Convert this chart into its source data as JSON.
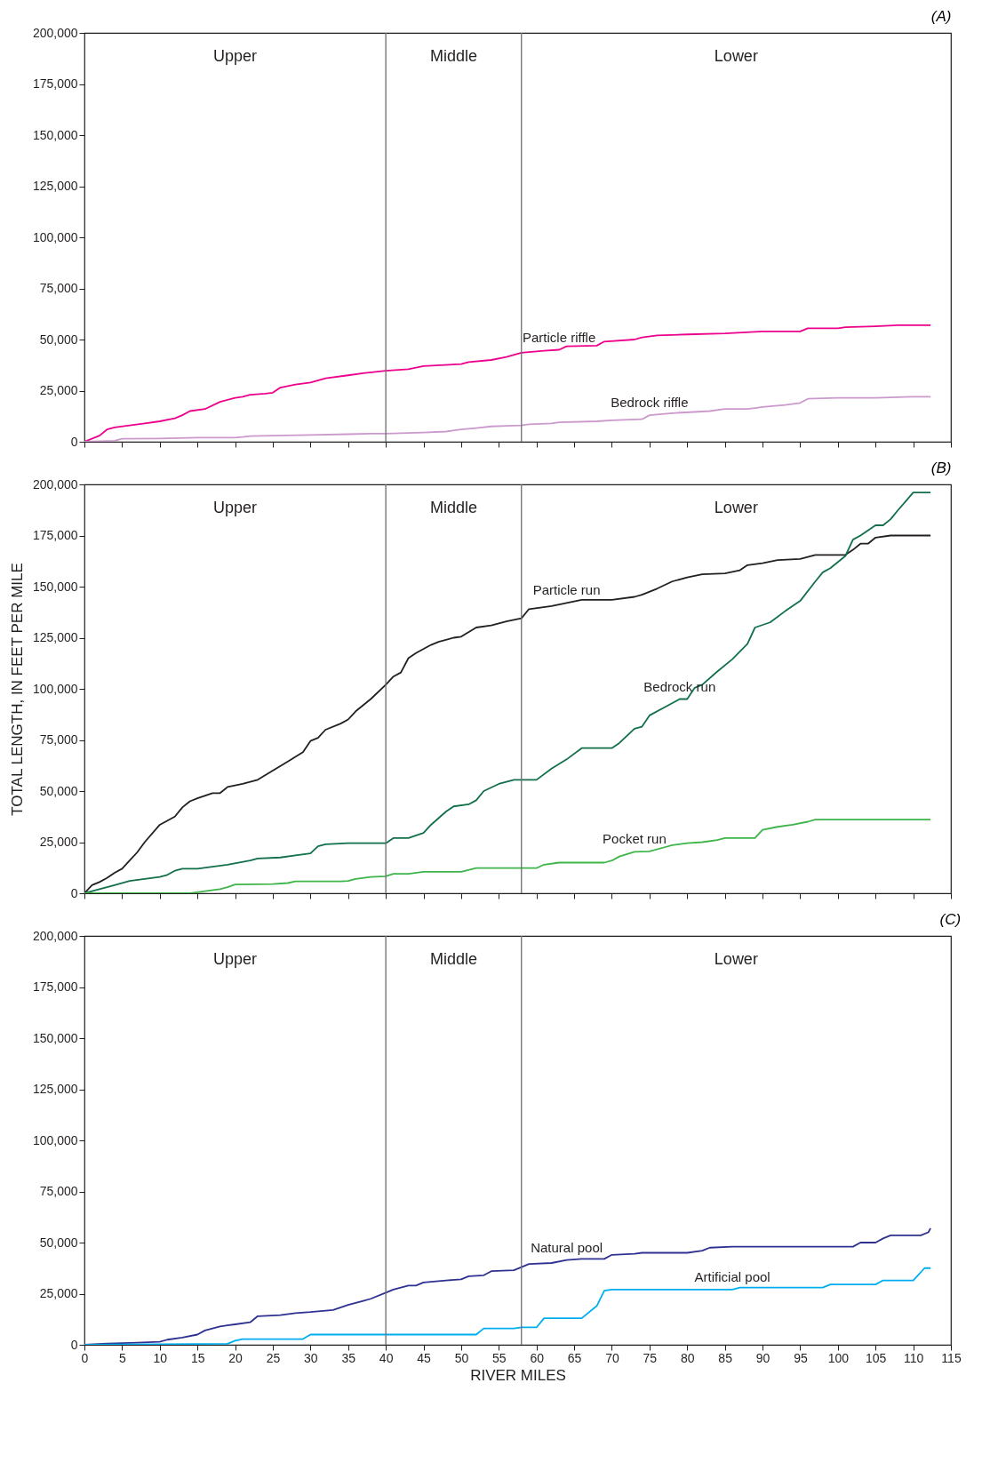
{
  "chart_data": [
    {
      "type": "line",
      "title": "(A)",
      "xlim": [
        0,
        115
      ],
      "xticks": [
        0,
        5,
        10,
        15,
        20,
        25,
        30,
        35,
        40,
        45,
        50,
        55,
        60,
        65,
        70,
        75,
        80,
        85,
        90,
        95,
        100,
        105,
        110,
        115
      ],
      "ylim": [
        0,
        200000
      ],
      "yticks": [
        {
          "value": 0,
          "label": "0"
        },
        {
          "value": 25000,
          "label": "25,000"
        },
        {
          "value": 50000,
          "label": "50,000"
        },
        {
          "value": 75000,
          "label": "75,000"
        },
        {
          "value": 100000,
          "label": "100,000"
        },
        {
          "value": 125000,
          "label": "125,000"
        },
        {
          "value": 150000,
          "label": "150,000"
        },
        {
          "value": 175000,
          "label": "175,000"
        },
        {
          "value": 200000,
          "label": "200,000"
        }
      ],
      "tick_labels": "y",
      "grid": false,
      "ref_lines": [
        {
          "axis": "x",
          "value": 40
        },
        {
          "axis": "x",
          "value": 58
        }
      ],
      "annotations": [
        "Upper",
        "Middle",
        "Lower"
      ],
      "series": [
        {
          "name": "Particle riffle",
          "color": "#ec008c",
          "x": [
            0,
            2,
            3,
            4,
            6,
            8,
            10,
            12,
            13,
            14,
            16,
            18,
            20,
            21,
            22,
            24,
            25,
            26,
            28,
            30,
            32,
            35,
            37,
            40,
            43,
            45,
            50,
            51,
            54,
            56,
            58,
            61,
            63,
            64,
            68,
            69,
            73,
            74,
            76,
            80,
            85,
            90,
            95,
            96,
            100,
            101,
            105,
            108,
            112.3
          ],
          "values": [
            0,
            3000,
            6000,
            7000,
            8000,
            9000,
            10000,
            11500,
            13000,
            15000,
            16000,
            19500,
            21500,
            22000,
            23000,
            23500,
            24000,
            26500,
            28000,
            29000,
            31000,
            32500,
            33500,
            34700,
            35500,
            37000,
            38000,
            39000,
            40000,
            41500,
            43500,
            44500,
            45000,
            46700,
            47000,
            49000,
            50000,
            51000,
            52000,
            52500,
            53000,
            54000,
            54000,
            55500,
            55500,
            56000,
            56500,
            57000,
            57000
          ]
        },
        {
          "name": "Bedrock riffle",
          "color": "#cc99cc",
          "x": [
            0,
            4,
            5,
            10,
            15,
            20,
            21,
            22,
            30,
            35,
            38,
            40,
            45,
            48,
            50,
            52,
            54,
            56,
            58,
            59,
            62,
            63,
            68,
            70,
            74,
            75,
            78,
            83,
            85,
            88,
            89,
            90,
            93,
            95,
            96,
            100,
            105,
            110,
            112.3
          ],
          "values": [
            0,
            500,
            1500,
            1600,
            2000,
            2000,
            2300,
            2800,
            3300,
            3700,
            4000,
            4000,
            4500,
            5000,
            6000,
            6700,
            7500,
            7800,
            8000,
            8500,
            9000,
            9500,
            10000,
            10500,
            11000,
            13000,
            14000,
            15000,
            16000,
            16000,
            16500,
            17000,
            18000,
            19000,
            21000,
            21500,
            21500,
            22000,
            22000
          ]
        }
      ]
    },
    {
      "type": "line",
      "title": "(B)",
      "ylabel": "TOTAL LENGTH, IN FEET PER MILE",
      "xlim": [
        0,
        115
      ],
      "xticks": [
        0,
        5,
        10,
        15,
        20,
        25,
        30,
        35,
        40,
        45,
        50,
        55,
        60,
        65,
        70,
        75,
        80,
        85,
        90,
        95,
        100,
        105,
        110,
        115
      ],
      "ylim": [
        0,
        200000
      ],
      "yticks": [
        {
          "value": 0,
          "label": "0"
        },
        {
          "value": 25000,
          "label": "25,000"
        },
        {
          "value": 50000,
          "label": "50,000"
        },
        {
          "value": 75000,
          "label": "75,000"
        },
        {
          "value": 100000,
          "label": "100,000"
        },
        {
          "value": 125000,
          "label": "125,000"
        },
        {
          "value": 150000,
          "label": "150,000"
        },
        {
          "value": 175000,
          "label": "175,000"
        },
        {
          "value": 200000,
          "label": "200,000"
        }
      ],
      "tick_labels": "y",
      "grid": false,
      "ref_lines": [
        {
          "axis": "x",
          "value": 40
        },
        {
          "axis": "x",
          "value": 58
        }
      ],
      "annotations": [
        "Upper",
        "Middle",
        "Lower"
      ],
      "series": [
        {
          "name": "Particle run",
          "color": "#231f20",
          "x": [
            0,
            1,
            2,
            3,
            4,
            5,
            6,
            7,
            8,
            10,
            12,
            13,
            14,
            15,
            17,
            18,
            19,
            21,
            23,
            25,
            27,
            29,
            30,
            31,
            32,
            34,
            35,
            36,
            38,
            40,
            41,
            42,
            43,
            44,
            46,
            47,
            49,
            50,
            52,
            54,
            56,
            58,
            59,
            62,
            64,
            66,
            70,
            73,
            74,
            76,
            78,
            80,
            82,
            85,
            87,
            88,
            90,
            92,
            95,
            97,
            101,
            102,
            103,
            104,
            105,
            107,
            112.3
          ],
          "values": [
            0,
            4000,
            5500,
            7500,
            10000,
            12000,
            16000,
            20000,
            25000,
            33500,
            37500,
            42000,
            45000,
            46500,
            49000,
            49000,
            52000,
            53500,
            55500,
            60000,
            64500,
            69000,
            74500,
            76000,
            80000,
            83000,
            85000,
            89000,
            95000,
            102000,
            106000,
            108000,
            115000,
            117500,
            121500,
            123000,
            125000,
            125500,
            130000,
            131000,
            133000,
            134500,
            139000,
            140500,
            142000,
            143500,
            143500,
            145000,
            146000,
            149000,
            152500,
            154500,
            156000,
            156500,
            158000,
            160500,
            161500,
            163000,
            163500,
            165500,
            165500,
            168000,
            171000,
            171000,
            174000,
            175000,
            175000
          ]
        },
        {
          "name": "Bedrock run",
          "color": "#11704a",
          "x": [
            0,
            2,
            4,
            6,
            8,
            10,
            11,
            12,
            13,
            15,
            17,
            19,
            22,
            23,
            26,
            28,
            30,
            31,
            32,
            35,
            40,
            41,
            43,
            45,
            46,
            48,
            49,
            51,
            52,
            53,
            55,
            57,
            60,
            62,
            64,
            66,
            70,
            71,
            73,
            74,
            75,
            77,
            79,
            80,
            81,
            82,
            84,
            86,
            88,
            89,
            91,
            93,
            95,
            97,
            98,
            99,
            101,
            102,
            103,
            105,
            106,
            107,
            108,
            110,
            112.3
          ],
          "values": [
            0,
            2000,
            4000,
            6000,
            7000,
            8000,
            9000,
            11000,
            12000,
            12000,
            13000,
            14000,
            16000,
            17000,
            17500,
            18500,
            19500,
            23000,
            24000,
            24500,
            24500,
            27000,
            27000,
            29500,
            33500,
            40000,
            42500,
            43500,
            45500,
            50000,
            53500,
            55500,
            55500,
            61000,
            65500,
            71000,
            71000,
            73500,
            80500,
            81500,
            87000,
            91000,
            95000,
            95000,
            100500,
            102000,
            108500,
            114500,
            122000,
            130000,
            132500,
            138000,
            143000,
            152500,
            157000,
            159000,
            165000,
            173000,
            175000,
            180000,
            180000,
            183000,
            187500,
            196000,
            196000
          ]
        },
        {
          "name": "Pocket run",
          "color": "#3db54a",
          "x": [
            0,
            14,
            15,
            16,
            18,
            19,
            20,
            25,
            27,
            28,
            34,
            35,
            36,
            38,
            40,
            41,
            43,
            45,
            50,
            52,
            60,
            61,
            63,
            69,
            70,
            71,
            73,
            75,
            77,
            78,
            80,
            82,
            84,
            85,
            89,
            90,
            92,
            94,
            96,
            97,
            112.3
          ],
          "values": [
            0,
            0,
            500,
            1000,
            2000,
            3000,
            4300,
            4500,
            5000,
            5800,
            5800,
            6000,
            7000,
            8000,
            8300,
            9500,
            9500,
            10500,
            10500,
            12300,
            12300,
            14000,
            15000,
            15000,
            16000,
            18000,
            20300,
            20500,
            22500,
            23500,
            24500,
            25000,
            26000,
            27000,
            27000,
            31000,
            32500,
            33500,
            35000,
            36000,
            36000
          ]
        }
      ]
    },
    {
      "type": "line",
      "title": "(C)",
      "xlabel": "RIVER MILES",
      "xlim": [
        0,
        115
      ],
      "xticks": [
        0,
        5,
        10,
        15,
        20,
        25,
        30,
        35,
        40,
        45,
        50,
        55,
        60,
        65,
        70,
        75,
        80,
        85,
        90,
        95,
        100,
        105,
        110,
        115
      ],
      "ylim": [
        0,
        200000
      ],
      "yticks": [
        {
          "value": 0,
          "label": "0"
        },
        {
          "value": 25000,
          "label": "25,000"
        },
        {
          "value": 50000,
          "label": "50,000"
        },
        {
          "value": 75000,
          "label": "75,000"
        },
        {
          "value": 100000,
          "label": "100,000"
        },
        {
          "value": 125000,
          "label": "125,000"
        },
        {
          "value": 150000,
          "label": "150,000"
        },
        {
          "value": 175000,
          "label": "175,000"
        },
        {
          "value": 200000,
          "label": "200,000"
        }
      ],
      "grid": false,
      "ref_lines": [
        {
          "axis": "x",
          "value": 40
        },
        {
          "axis": "x",
          "value": 58
        }
      ],
      "annotations": [
        "Upper",
        "Middle",
        "Lower"
      ],
      "series": [
        {
          "name": "Natural pool",
          "color": "#2e3192",
          "x": [
            0,
            3,
            7,
            10,
            11,
            13,
            15,
            16,
            18,
            20,
            22,
            23,
            26,
            28,
            30,
            33,
            35,
            37,
            38,
            40,
            41,
            43,
            44,
            45,
            48,
            50,
            51,
            53,
            54,
            57,
            58,
            59,
            62,
            64,
            66,
            69,
            70,
            73,
            74,
            80,
            82,
            83,
            86,
            102,
            103,
            105,
            106,
            107,
            111,
            112,
            112.3
          ],
          "values": [
            0,
            600,
            1000,
            1500,
            2500,
            3500,
            5000,
            7000,
            9000,
            10000,
            11000,
            14000,
            14500,
            15500,
            16000,
            17000,
            19500,
            21500,
            22500,
            25500,
            27000,
            29000,
            29000,
            30500,
            31500,
            32000,
            33500,
            34000,
            36000,
            36500,
            38000,
            39500,
            40000,
            41500,
            42000,
            42000,
            44000,
            44500,
            45000,
            45000,
            46000,
            47500,
            48000,
            48000,
            50000,
            50000,
            52000,
            53500,
            53500,
            55000,
            57000
          ]
        },
        {
          "name": "Artificial pool",
          "color": "#00aeef",
          "x": [
            0,
            19,
            20,
            21,
            29,
            30,
            52,
            53,
            57,
            58,
            60,
            61,
            66,
            68,
            69,
            70,
            86,
            87,
            98,
            99,
            105,
            106,
            110,
            111.5,
            112.3
          ],
          "values": [
            0,
            500,
            2000,
            2800,
            2800,
            5000,
            5000,
            8000,
            8000,
            8500,
            8500,
            13000,
            13000,
            19000,
            26500,
            27000,
            27000,
            28000,
            28000,
            29500,
            29500,
            31500,
            31500,
            37500,
            37500
          ]
        }
      ]
    }
  ]
}
